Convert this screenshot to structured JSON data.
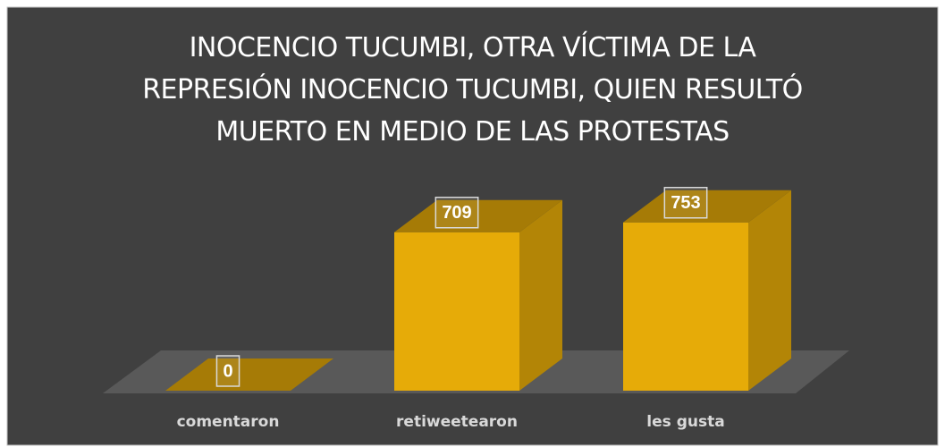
{
  "chart_data": {
    "type": "bar3d",
    "title": "INOCENCIO TUCUMBI, OTRA VÍCTIMA DE LA REPRESIÓN INOCENCIO TUCUMBI, QUIEN RESULTÓ MUERTO EN MEDIO DE LAS PROTESTAS",
    "categories": [
      "comentaron",
      "retiweetearon",
      "les gusta"
    ],
    "values": [
      0,
      709,
      753
    ],
    "color": "#e6ab08"
  }
}
